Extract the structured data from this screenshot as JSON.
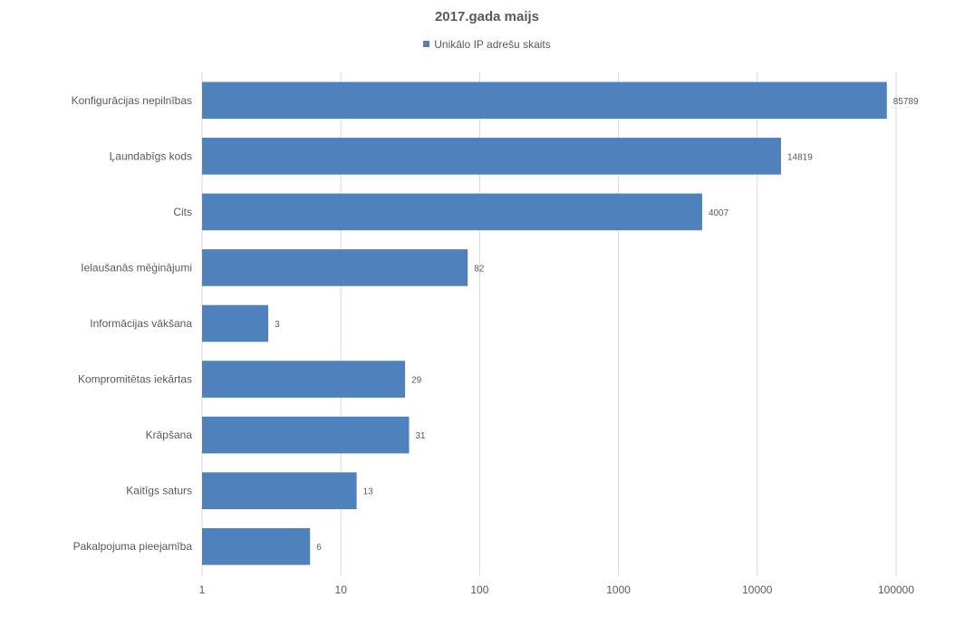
{
  "chart_data": {
    "type": "bar",
    "orientation": "horizontal",
    "title": "2017.gada maijs",
    "legend_position": "top",
    "x_scale": "log",
    "xlim": [
      1,
      100000
    ],
    "x_ticks": [
      "1",
      "10",
      "100",
      "1000",
      "10000",
      "100000"
    ],
    "grid": true,
    "categories": [
      "Konfigurācijas nepilnības",
      "Ļaundabīgs kods",
      "Cits",
      "Ielaušanās mēģinājumi",
      "Informācijas vākšana",
      "Kompromitētas iekārtas",
      "Krāpšana",
      "Kaitīgs saturs",
      "Pakalpojuma pieejamība"
    ],
    "series": [
      {
        "name": "Unikālo IP adrešu skaits",
        "color": "#4f81bd",
        "values": [
          85789,
          14819,
          4007,
          82,
          3,
          29,
          31,
          13,
          6
        ]
      }
    ]
  }
}
